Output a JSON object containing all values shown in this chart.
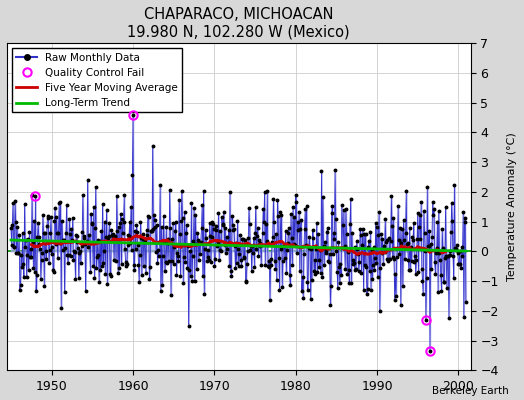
{
  "title": "CHAPARACO, MICHOACAN",
  "subtitle": "19.980 N, 102.280 W (Mexico)",
  "ylabel": "Temperature Anomaly (°C)",
  "credit": "Berkeley Earth",
  "xlim": [
    1944.5,
    2001.5
  ],
  "ylim": [
    -4,
    7
  ],
  "yticks": [
    -4,
    -3,
    -2,
    -1,
    0,
    1,
    2,
    3,
    4,
    5,
    6,
    7
  ],
  "xticks": [
    1950,
    1960,
    1970,
    1980,
    1990,
    2000
  ],
  "start_year": 1945,
  "end_year": 2000,
  "seed": 42,
  "bg_color": "#d8d8d8",
  "plot_bg_color": "#ffffff",
  "line_color": "#3333cc",
  "fill_color": "#aaaaee",
  "ma_color": "#cc0000",
  "trend_color": "#00bb00",
  "qc_color": "#ff00ff",
  "zero_line_color": "#009900",
  "grid_color": "#cccccc"
}
